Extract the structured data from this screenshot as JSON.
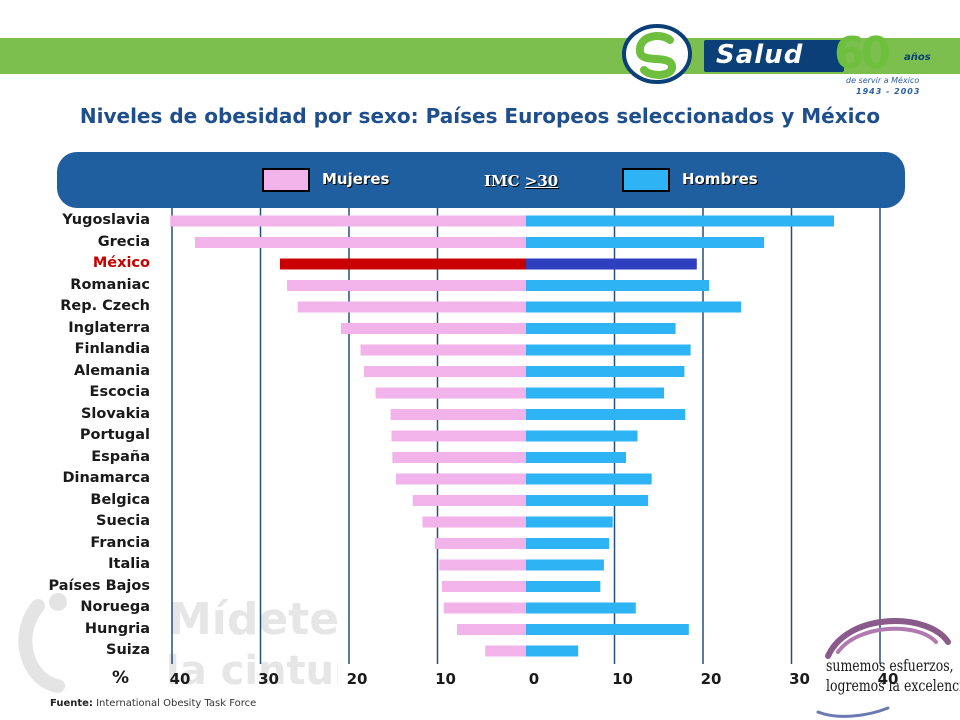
{
  "header": {
    "brand": "Salud",
    "anniversary_number": "60",
    "anniversary_word": "años",
    "anniversary_tagline": "de servir a México",
    "anniversary_years": "1943 - 2003"
  },
  "colors": {
    "mujeres": "#f2b2ea",
    "hombres": "#2eb3f5",
    "mexico_mujeres": "#c80000",
    "mexico_hombres": "#2f3fc0",
    "gridline": "#2a4d7a",
    "legend_panel": "#1f5f9f",
    "topbar": "#7cbf4f"
  },
  "legend": {
    "mujeres_label": "Mujeres",
    "hombres_label": "Hombres",
    "imc_prefix": "IMC ",
    "imc_value": ">30"
  },
  "axis": {
    "percent_symbol": "%"
  },
  "footer": {
    "source_label": "Fuente:",
    "source_text": " International Obesity Task Force"
  },
  "watermark": {
    "line1": "Mídete",
    "line2": "la cintura"
  },
  "slogan": {
    "line1": "sumemos esfuerzos,",
    "line2": "logremos la excelencia..."
  },
  "chart_data": {
    "type": "bar",
    "orientation": "horizontal-butterfly",
    "title": "Niveles de obesidad por sexo: Países Europeos seleccionados y México",
    "ylabel": "",
    "xlabel": "%",
    "xlim": [
      -40,
      40
    ],
    "tick_values": [
      -40,
      -30,
      -20,
      -10,
      0,
      10,
      20,
      30,
      40
    ],
    "tick_labels": [
      "40",
      "30",
      "20",
      "10",
      "0",
      "10",
      "20",
      "30",
      "40"
    ],
    "grid": true,
    "highlight_category": "México",
    "categories": [
      "Yugoslavia",
      "Grecia",
      "México",
      "Romaniac",
      "Rep. Czech",
      "Inglaterra",
      "Finlandia",
      "Alemania",
      "Escocia",
      "Slovakia",
      "Portugal",
      "España",
      "Dinamarca",
      "Belgica",
      "Suecia",
      "Francia",
      "Italia",
      "Países Bajos",
      "Noruega",
      "Hungria",
      "Suiza"
    ],
    "series": [
      {
        "name": "Mujeres",
        "values": [
          40.2,
          37.4,
          27.8,
          27.0,
          25.8,
          20.9,
          18.7,
          18.3,
          17.0,
          15.3,
          15.2,
          15.1,
          14.7,
          12.8,
          11.7,
          10.3,
          9.8,
          9.5,
          9.3,
          7.8,
          4.6
        ]
      },
      {
        "name": "Hombres",
        "values": [
          34.8,
          26.9,
          19.3,
          20.7,
          24.3,
          16.9,
          18.6,
          17.9,
          15.6,
          18.0,
          12.6,
          11.3,
          14.2,
          13.8,
          9.8,
          9.4,
          8.8,
          8.4,
          12.4,
          18.4,
          5.9
        ]
      }
    ]
  }
}
